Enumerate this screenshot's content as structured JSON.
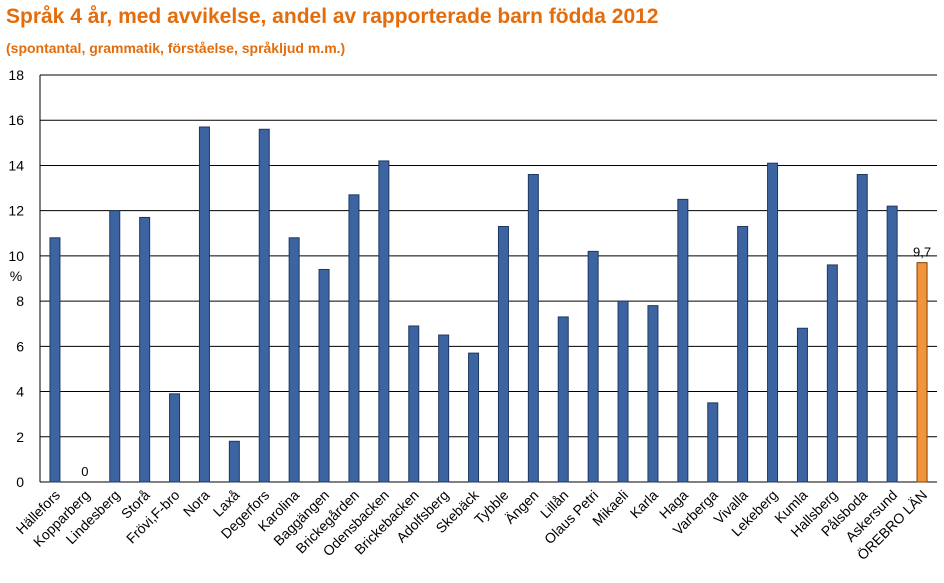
{
  "colors": {
    "title": "#e46c0a",
    "bar": "#3c64a0",
    "bar_edge": "#1f3864",
    "highlight_bar": "#f0953b",
    "highlight_edge": "#7f3f00",
    "grid": "#000000"
  },
  "chart_data": {
    "type": "bar",
    "title": "Språk 4 år, med avvikelse, andel av rapporterade barn födda 2012",
    "subtitle": "(spontantal, grammatik, förståelse, språkljud m.m.)",
    "ylabel": "%",
    "xlabel": "",
    "ylim": [
      0,
      18
    ],
    "yticks": [
      0,
      2,
      4,
      6,
      8,
      10,
      12,
      14,
      16,
      18
    ],
    "grid": true,
    "categories": [
      "Hällefors",
      "Kopparberg",
      "Lindesberg",
      "Storå",
      "Frövi,F-bro",
      "Nora",
      "Laxå",
      "Degerfors",
      "Karolina",
      "Baggängen",
      "Brickegården",
      "Odensbacken",
      "Brickebacken",
      "Adolfsberg",
      "Skebäck",
      "Tybble",
      "Ängen",
      "Lillån",
      "Olaus Petri",
      "Mikaeli",
      "Karla",
      "Haga",
      "Varberga",
      "Vivalla",
      "Lekeberg",
      "Kumla",
      "Hallsberg",
      "Pålsboda",
      "Askersund",
      "ÖREBRO LÄN"
    ],
    "values": [
      10.8,
      0,
      12.0,
      11.7,
      3.9,
      15.7,
      1.8,
      15.6,
      10.8,
      9.4,
      12.7,
      14.2,
      6.9,
      6.5,
      5.7,
      11.3,
      13.6,
      7.3,
      10.2,
      8.0,
      7.8,
      12.5,
      3.5,
      11.3,
      14.1,
      6.8,
      9.6,
      13.6,
      12.2,
      9.7
    ],
    "highlight_index": 29,
    "data_labels": [
      {
        "index": 1,
        "text": "0"
      },
      {
        "index": 29,
        "text": "9,7"
      }
    ]
  }
}
